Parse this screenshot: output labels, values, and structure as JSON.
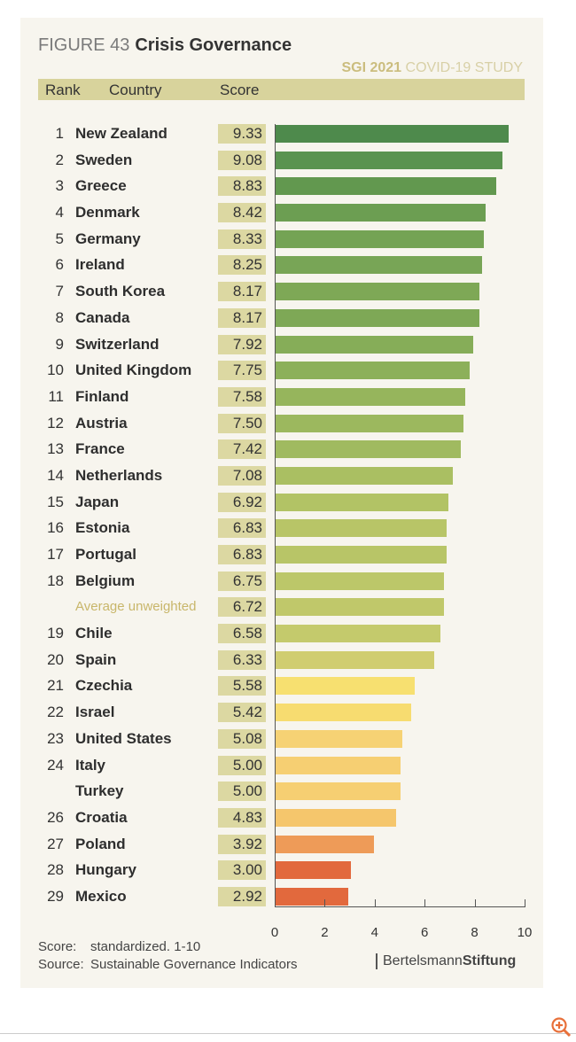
{
  "header": {
    "figure": "FIGURE 43",
    "title": "Crisis Governance",
    "study_bold": "SGI 2021",
    "study": "COVID-19 STUDY",
    "col_rank": "Rank",
    "col_country": "Country",
    "col_score": "Score"
  },
  "chart_data": {
    "type": "bar",
    "orientation": "horizontal",
    "title": "Crisis Governance",
    "xlim": [
      0,
      10
    ],
    "xticks": [
      "0",
      "2",
      "4",
      "6",
      "8",
      "10"
    ],
    "rows": [
      {
        "rank": "1",
        "country": "New Zealand",
        "score": "9.33",
        "value": 9.33,
        "color": "#4e8a4c"
      },
      {
        "rank": "2",
        "country": "Sweden",
        "score": "9.08",
        "value": 9.08,
        "color": "#5a9350"
      },
      {
        "rank": "3",
        "country": "Greece",
        "score": "8.83",
        "value": 8.83,
        "color": "#62984f"
      },
      {
        "rank": "4",
        "country": "Denmark",
        "score": "8.42",
        "value": 8.42,
        "color": "#6c9e52"
      },
      {
        "rank": "5",
        "country": "Germany",
        "score": "8.33",
        "value": 8.33,
        "color": "#74a354"
      },
      {
        "rank": "6",
        "country": "Ireland",
        "score": "8.25",
        "value": 8.25,
        "color": "#78a556"
      },
      {
        "rank": "7",
        "country": "South Korea",
        "score": "8.17",
        "value": 8.17,
        "color": "#7ea856"
      },
      {
        "rank": "8",
        "country": "Canada",
        "score": "8.17",
        "value": 8.17,
        "color": "#7ea856"
      },
      {
        "rank": "9",
        "country": "Switzerland",
        "score": "7.92",
        "value": 7.92,
        "color": "#86ad58"
      },
      {
        "rank": "10",
        "country": "United Kingdom",
        "score": "7.75",
        "value": 7.75,
        "color": "#8cb05a"
      },
      {
        "rank": "11",
        "country": "Finland",
        "score": "7.58",
        "value": 7.58,
        "color": "#96b55c"
      },
      {
        "rank": "12",
        "country": "Austria",
        "score": "7.50",
        "value": 7.5,
        "color": "#9cb85e"
      },
      {
        "rank": "13",
        "country": "France",
        "score": "7.42",
        "value": 7.42,
        "color": "#a0ba60"
      },
      {
        "rank": "14",
        "country": "Netherlands",
        "score": "7.08",
        "value": 7.08,
        "color": "#aabf62"
      },
      {
        "rank": "15",
        "country": "Japan",
        "score": "6.92",
        "value": 6.92,
        "color": "#b2c365"
      },
      {
        "rank": "16",
        "country": "Estonia",
        "score": "6.83",
        "value": 6.83,
        "color": "#b8c567"
      },
      {
        "rank": "17",
        "country": "Portugal",
        "score": "6.83",
        "value": 6.83,
        "color": "#b8c567"
      },
      {
        "rank": "18",
        "country": "Belgium",
        "score": "6.75",
        "value": 6.75,
        "color": "#bcc769"
      },
      {
        "rank": "",
        "country": "Average unweighted",
        "score": "6.72",
        "value": 6.72,
        "color": "#c0c86a",
        "average": true
      },
      {
        "rank": "19",
        "country": "Chile",
        "score": "6.58",
        "value": 6.58,
        "color": "#c4ca6c"
      },
      {
        "rank": "20",
        "country": "Spain",
        "score": "6.33",
        "value": 6.33,
        "color": "#d0cd70"
      },
      {
        "rank": "21",
        "country": "Czechia",
        "score": "5.58",
        "value": 5.58,
        "color": "#f7e070"
      },
      {
        "rank": "22",
        "country": "Israel",
        "score": "5.42",
        "value": 5.42,
        "color": "#f7dc70"
      },
      {
        "rank": "23",
        "country": "United States",
        "score": "5.08",
        "value": 5.08,
        "color": "#f6d274"
      },
      {
        "rank": "24",
        "country": "Italy",
        "score": "5.00",
        "value": 5.0,
        "color": "#f6cf72"
      },
      {
        "rank": "",
        "country": "Turkey",
        "score": "5.00",
        "value": 5.0,
        "color": "#f6cf72"
      },
      {
        "rank": "26",
        "country": "Croatia",
        "score": "4.83",
        "value": 4.83,
        "color": "#f5c66c"
      },
      {
        "rank": "27",
        "country": "Poland",
        "score": "3.92",
        "value": 3.92,
        "color": "#ee9b58"
      },
      {
        "rank": "28",
        "country": "Hungary",
        "score": "3.00",
        "value": 3.0,
        "color": "#e2693d"
      },
      {
        "rank": "29",
        "country": "Mexico",
        "score": "2.92",
        "value": 2.92,
        "color": "#e2693d"
      }
    ]
  },
  "footer": {
    "score_key": "Score:",
    "score_val": "standardized. 1-10",
    "source_key": "Source:",
    "source_val": "Sustainable Governance Indicators",
    "brand_a": "Bertelsmann",
    "brand_b": "Stiftung"
  }
}
